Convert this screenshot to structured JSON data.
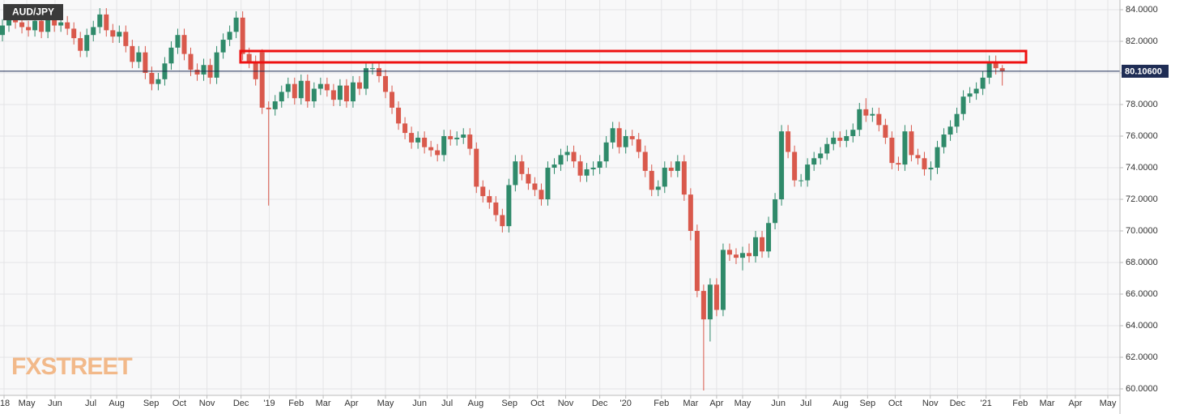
{
  "chart_data": {
    "type": "candlestick",
    "title": "AUD/JPY",
    "watermark": "FXSTREET",
    "up_color": "#2f8a6a",
    "down_color": "#d9594c",
    "grid": true,
    "last_price": {
      "value": 80.106,
      "label": "80.10600"
    },
    "ylim": [
      60,
      84
    ],
    "yticks": [
      {
        "value": 60,
        "label": "60.0000"
      },
      {
        "value": 62,
        "label": "62.0000"
      },
      {
        "value": 64,
        "label": "64.0000"
      },
      {
        "value": 66,
        "label": "66.0000"
      },
      {
        "value": 68,
        "label": "68.0000"
      },
      {
        "value": 70,
        "label": "70.0000"
      },
      {
        "value": 72,
        "label": "72.0000"
      },
      {
        "value": 74,
        "label": "74.0000"
      },
      {
        "value": 76,
        "label": "76.0000"
      },
      {
        "value": 78,
        "label": "78.0000"
      },
      {
        "value": 80,
        "label": "80.0000"
      },
      {
        "value": 82,
        "label": "82.0000"
      },
      {
        "value": 84,
        "label": "84.0000"
      }
    ],
    "xlim": [
      -0.375,
      172.125
    ],
    "xticks": [
      {
        "value": 0.25,
        "label": "'18"
      },
      {
        "value": 3.75,
        "label": "May"
      },
      {
        "value": 8.1,
        "label": "Jun"
      },
      {
        "value": 13.6,
        "label": "Jul"
      },
      {
        "value": 17.6,
        "label": "Aug"
      },
      {
        "value": 22.9,
        "label": "Sep"
      },
      {
        "value": 27.25,
        "label": "Oct"
      },
      {
        "value": 31.5,
        "label": "Nov"
      },
      {
        "value": 36.75,
        "label": "Dec"
      },
      {
        "value": 41.1,
        "label": "'19"
      },
      {
        "value": 45.25,
        "label": "Feb"
      },
      {
        "value": 49.4,
        "label": "Mar"
      },
      {
        "value": 53.75,
        "label": "Apr"
      },
      {
        "value": 59,
        "label": "May"
      },
      {
        "value": 64.25,
        "label": "Jun"
      },
      {
        "value": 68.5,
        "label": "Jul"
      },
      {
        "value": 72.9,
        "label": "Aug"
      },
      {
        "value": 78.1,
        "label": "Sep"
      },
      {
        "value": 82.4,
        "label": "Oct"
      },
      {
        "value": 86.75,
        "label": "Nov"
      },
      {
        "value": 92,
        "label": "Dec"
      },
      {
        "value": 96,
        "label": "'20"
      },
      {
        "value": 101.5,
        "label": "Feb"
      },
      {
        "value": 106,
        "label": "Mar"
      },
      {
        "value": 110,
        "label": "Apr"
      },
      {
        "value": 114,
        "label": "May"
      },
      {
        "value": 119.5,
        "label": "Jun"
      },
      {
        "value": 123.75,
        "label": "Jul"
      },
      {
        "value": 129.1,
        "label": "Aug"
      },
      {
        "value": 133.25,
        "label": "Sep"
      },
      {
        "value": 137.5,
        "label": "Oct"
      },
      {
        "value": 142.9,
        "label": "Nov"
      },
      {
        "value": 147.1,
        "label": "Dec"
      },
      {
        "value": 151.5,
        "label": "'21"
      },
      {
        "value": 156.75,
        "label": "Feb"
      },
      {
        "value": 160.9,
        "label": "Mar"
      },
      {
        "value": 165.25,
        "label": "Apr"
      },
      {
        "value": 170.25,
        "label": "May"
      }
    ],
    "x": [
      0,
      1,
      2,
      3,
      4,
      5,
      6,
      7,
      8,
      9,
      10,
      11,
      12,
      13,
      14,
      15,
      16,
      17,
      18,
      19,
      20,
      21,
      22,
      23,
      24,
      25,
      26,
      27,
      28,
      29,
      30,
      31,
      32,
      33,
      34,
      35,
      36,
      37,
      38,
      39,
      40,
      41,
      42,
      43,
      44,
      45,
      46,
      47,
      48,
      49,
      50,
      51,
      52,
      53,
      54,
      55,
      56,
      57,
      58,
      59,
      60,
      61,
      62,
      63,
      64,
      65,
      66,
      67,
      68,
      69,
      70,
      71,
      72,
      73,
      74,
      75,
      76,
      77,
      78,
      79,
      80,
      81,
      82,
      83,
      84,
      85,
      86,
      87,
      88,
      89,
      90,
      91,
      92,
      93,
      94,
      95,
      96,
      97,
      98,
      99,
      100,
      101,
      102,
      103,
      104,
      105,
      106,
      107,
      108,
      109,
      110,
      111,
      112,
      113,
      114,
      115,
      116,
      117,
      118,
      119,
      120,
      121,
      122,
      123,
      124,
      125,
      126,
      127,
      128,
      129,
      130,
      131,
      132,
      133,
      134,
      135,
      136,
      137,
      138,
      139,
      140,
      141,
      142,
      143,
      144,
      145,
      146,
      147,
      148,
      149,
      150,
      151,
      152,
      153,
      154
    ],
    "open": [
      82.4,
      83.0,
      83.6,
      83.2,
      82.9,
      82.7,
      83.3,
      82.6,
      83.7,
      83.0,
      83.2,
      82.8,
      82.2,
      81.4,
      82.4,
      82.9,
      83.7,
      82.7,
      82.3,
      82.6,
      81.7,
      80.7,
      81.3,
      80.0,
      79.3,
      79.6,
      80.6,
      81.6,
      82.4,
      81.2,
      80.2,
      79.9,
      80.5,
      79.7,
      81.3,
      82.1,
      82.6,
      83.5,
      81.2,
      80.7,
      81.3,
      77.8,
      77.7,
      78.2,
      78.8,
      79.3,
      78.4,
      79.5,
      78.2,
      79.0,
      79.3,
      78.9,
      78.3,
      79.2,
      78.2,
      79.4,
      79.0,
      80.3,
      80.3,
      79.8,
      78.8,
      77.8,
      76.8,
      76.2,
      75.6,
      75.9,
      75.3,
      75.1,
      74.8,
      76.0,
      75.8,
      75.9,
      76.1,
      75.2,
      72.8,
      72.2,
      71.8,
      71.0,
      70.3,
      72.9,
      74.4,
      73.6,
      73.0,
      72.6,
      72.0,
      74.0,
      74.2,
      74.8,
      75.0,
      74.4,
      73.5,
      73.9,
      74.0,
      74.4,
      75.6,
      76.5,
      75.3,
      76.0,
      75.8,
      75.0,
      73.8,
      72.6,
      72.8,
      74.0,
      73.8,
      74.4,
      72.3,
      70.0,
      66.2,
      64.4,
      66.6,
      65.0,
      68.8,
      68.5,
      68.3,
      68.6,
      68.4,
      69.6,
      68.7,
      70.5,
      72.0,
      76.3,
      75.0,
      73.2,
      73.2,
      74.2,
      74.6,
      74.9,
      75.5,
      75.9,
      75.7,
      76.0,
      76.4,
      77.7,
      77.3,
      77.4,
      76.7,
      75.9,
      74.3,
      74.2,
      76.3,
      74.8,
      74.6,
      73.9,
      74.0,
      75.3,
      76.1,
      76.6,
      77.4,
      78.5,
      78.7,
      79.0,
      79.7,
      80.7,
      80.3
    ],
    "high": [
      83.4,
      84.0,
      84.0,
      83.6,
      83.3,
      83.7,
      83.7,
      84.1,
      84.1,
      83.6,
      83.6,
      83.2,
      82.6,
      82.8,
      83.3,
      84.1,
      84.1,
      83.1,
      83.0,
      83.0,
      82.1,
      81.7,
      81.7,
      80.4,
      80.0,
      81.0,
      82.0,
      82.8,
      82.8,
      81.6,
      80.6,
      80.9,
      80.9,
      81.7,
      82.5,
      83.0,
      83.9,
      83.9,
      81.6,
      81.1,
      81.5,
      78.2,
      78.6,
      79.2,
      79.7,
      79.7,
      79.9,
      79.9,
      79.4,
      79.7,
      79.7,
      79.3,
      79.6,
      79.6,
      79.8,
      79.8,
      80.7,
      80.7,
      80.7,
      80.2,
      79.2,
      78.2,
      77.2,
      76.6,
      76.3,
      76.3,
      75.7,
      75.5,
      76.4,
      76.4,
      76.3,
      76.5,
      76.5,
      75.6,
      73.2,
      72.6,
      72.2,
      71.4,
      73.3,
      74.8,
      74.8,
      74.0,
      73.4,
      73.0,
      74.4,
      74.6,
      75.2,
      75.4,
      75.4,
      74.8,
      74.3,
      74.4,
      74.8,
      76.0,
      76.9,
      76.9,
      76.4,
      76.4,
      76.2,
      75.4,
      74.2,
      73.2,
      74.4,
      74.4,
      74.8,
      74.8,
      72.7,
      70.4,
      66.6,
      67.0,
      67.0,
      69.2,
      69.2,
      68.9,
      69.0,
      69.2,
      70.0,
      70.0,
      70.9,
      72.4,
      76.7,
      76.7,
      75.4,
      73.6,
      74.6,
      75.0,
      75.3,
      75.9,
      76.3,
      76.3,
      76.4,
      76.8,
      78.1,
      78.4,
      77.8,
      77.8,
      77.1,
      76.3,
      74.7,
      76.7,
      76.7,
      75.2,
      75.0,
      74.4,
      75.7,
      76.5,
      77.0,
      77.8,
      78.9,
      79.1,
      79.4,
      80.1,
      81.1,
      81.1,
      80.5
    ],
    "low": [
      82.0,
      82.6,
      82.8,
      82.5,
      82.3,
      82.3,
      82.2,
      82.2,
      82.6,
      82.6,
      82.4,
      81.8,
      81.0,
      81.0,
      82.0,
      82.5,
      82.3,
      81.9,
      81.9,
      81.3,
      80.3,
      80.3,
      79.6,
      78.9,
      78.9,
      79.2,
      80.2,
      81.2,
      80.8,
      79.8,
      79.5,
      79.5,
      79.3,
      79.3,
      80.9,
      81.7,
      82.2,
      80.8,
      80.3,
      79.2,
      77.4,
      71.6,
      77.3,
      77.8,
      78.4,
      78.0,
      78.0,
      77.8,
      77.8,
      78.6,
      78.5,
      77.9,
      77.9,
      77.8,
      77.8,
      78.6,
      78.6,
      79.9,
      79.4,
      78.4,
      77.4,
      76.4,
      75.8,
      75.2,
      75.2,
      74.9,
      74.7,
      74.4,
      74.4,
      75.4,
      75.4,
      75.5,
      74.8,
      72.4,
      71.8,
      71.4,
      70.6,
      69.9,
      69.9,
      72.5,
      73.2,
      72.6,
      72.2,
      71.6,
      71.6,
      73.6,
      73.8,
      74.4,
      74.0,
      73.1,
      73.1,
      73.5,
      73.6,
      74.0,
      75.2,
      74.9,
      74.9,
      75.4,
      74.6,
      73.4,
      72.2,
      72.2,
      72.4,
      73.4,
      73.4,
      71.9,
      69.4,
      65.8,
      59.9,
      63.0,
      64.6,
      64.6,
      68.1,
      67.9,
      67.5,
      68.0,
      68.0,
      68.3,
      68.3,
      70.1,
      71.6,
      74.6,
      72.8,
      72.8,
      72.8,
      73.8,
      74.2,
      74.5,
      75.1,
      75.3,
      75.3,
      75.6,
      76.0,
      76.9,
      76.9,
      76.3,
      75.5,
      73.9,
      73.8,
      73.8,
      74.4,
      74.2,
      73.5,
      73.2,
      73.6,
      74.9,
      75.7,
      76.2,
      77.0,
      78.1,
      78.3,
      78.6,
      79.3,
      79.9,
      79.2
    ],
    "close": [
      83.0,
      83.6,
      83.2,
      82.9,
      82.7,
      83.3,
      82.6,
      83.7,
      83.0,
      83.2,
      82.8,
      82.2,
      81.4,
      82.4,
      82.9,
      83.7,
      82.7,
      82.3,
      82.6,
      81.7,
      80.7,
      81.3,
      80.0,
      79.3,
      79.6,
      80.6,
      81.6,
      82.4,
      81.2,
      80.2,
      79.9,
      80.5,
      79.7,
      81.3,
      82.1,
      82.6,
      83.5,
      81.2,
      80.7,
      79.6,
      77.8,
      77.7,
      78.2,
      78.8,
      79.3,
      78.4,
      79.5,
      78.2,
      79.0,
      79.3,
      78.9,
      78.3,
      79.2,
      78.2,
      79.4,
      79.0,
      80.3,
      80.3,
      79.8,
      78.8,
      77.8,
      76.8,
      76.2,
      75.6,
      75.9,
      75.3,
      75.1,
      74.8,
      76.0,
      75.8,
      75.9,
      76.1,
      75.2,
      72.8,
      72.2,
      71.8,
      71.0,
      70.3,
      72.9,
      74.4,
      73.6,
      73.0,
      72.6,
      72.0,
      74.0,
      74.2,
      74.8,
      75.0,
      74.4,
      73.5,
      73.9,
      74.0,
      74.4,
      75.6,
      76.5,
      75.3,
      76.0,
      75.8,
      75.0,
      73.8,
      72.6,
      72.8,
      74.0,
      73.8,
      74.4,
      72.3,
      70.0,
      66.2,
      64.4,
      66.6,
      65.0,
      68.8,
      68.5,
      68.3,
      68.6,
      68.4,
      69.6,
      68.7,
      70.5,
      72.0,
      76.3,
      75.0,
      73.2,
      73.2,
      74.2,
      74.6,
      74.9,
      75.5,
      75.9,
      75.7,
      76.0,
      76.4,
      77.7,
      77.3,
      77.4,
      76.7,
      75.9,
      74.3,
      74.2,
      76.3,
      74.8,
      74.6,
      73.9,
      74.0,
      75.3,
      76.1,
      76.6,
      77.4,
      78.5,
      78.7,
      79.0,
      79.7,
      80.7,
      80.3,
      80.1
    ]
  }
}
